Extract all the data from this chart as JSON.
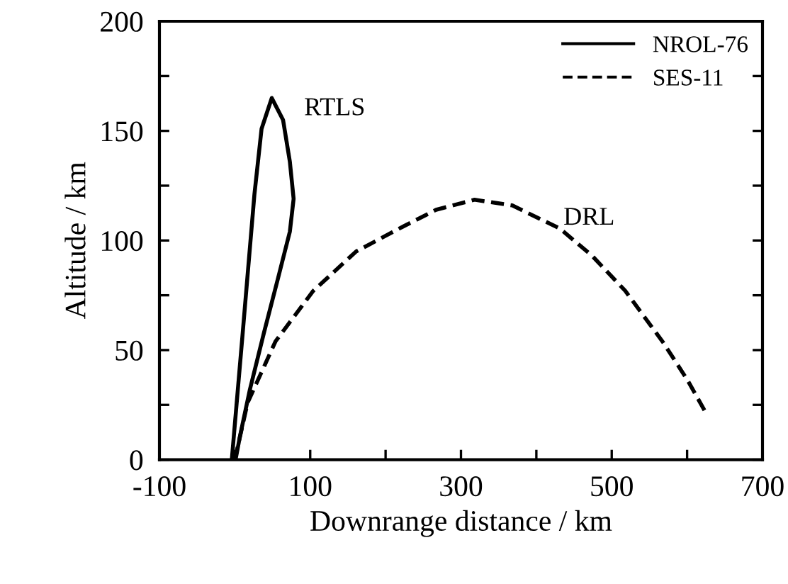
{
  "chart_data": {
    "type": "line",
    "xlabel": "Downrange distance / km",
    "ylabel": "Altitude / km",
    "xlim": [
      -100,
      700
    ],
    "xticks": [
      -100,
      {
        "value": 0,
        "label": null
      },
      100,
      {
        "value": 200,
        "label": null
      },
      300,
      {
        "value": 400,
        "label": null
      },
      500,
      {
        "value": 600,
        "label": null
      },
      700
    ],
    "ylim": [
      0,
      200
    ],
    "yticks": [
      0,
      {
        "value": 25,
        "label": null
      },
      50,
      {
        "value": 75,
        "label": null
      },
      100,
      {
        "value": 125,
        "label": null
      },
      150,
      {
        "value": 175,
        "label": null
      },
      200
    ],
    "grid": false,
    "legend": "top right",
    "marker": "none",
    "series": [
      {
        "name": "NROL-76",
        "color": "#000000",
        "line_style": "solid",
        "x": [
          -4,
          10.5,
          26,
          35.5,
          49,
          64,
          73,
          78,
          73,
          57.5,
          38.7,
          20,
          7,
          1
        ],
        "values": [
          0,
          58,
          121,
          151,
          165,
          155,
          136,
          119,
          104,
          83,
          58,
          32,
          11,
          0
        ]
      },
      {
        "name": "SES-11",
        "color": "#000000",
        "line_style": "dashed",
        "x": [
          0,
          17,
          54,
          104,
          161,
          224,
          267,
          318,
          368,
          431,
          474,
          518,
          568,
          600,
          626
        ],
        "values": [
          0,
          26,
          54,
          77,
          95,
          106.5,
          114,
          118.6,
          116,
          105.5,
          93,
          77,
          53.6,
          36.6,
          20.7
        ]
      }
    ],
    "annotations": [
      "RTLS",
      "DRL"
    ]
  }
}
